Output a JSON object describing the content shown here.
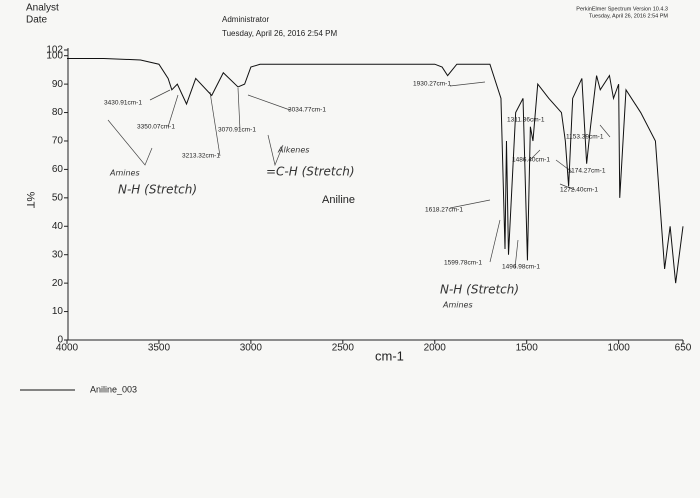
{
  "chart_data": {
    "type": "line",
    "header": {
      "left": [
        "Analyst",
        "Date"
      ],
      "center": [
        "Administrator",
        "Tuesday, April 26, 2016 2:54 PM"
      ],
      "right": [
        "PerkinElmer Spectrum Version 10.4.3",
        "Tuesday, April 26, 2016 2:54 PM"
      ]
    },
    "sample_label": "Aniline",
    "xlabel": "cm-1",
    "ylabel": "%T",
    "xlim": [
      4000,
      650
    ],
    "ylim": [
      0,
      102
    ],
    "xticks": [
      4000,
      3500,
      3000,
      2500,
      2000,
      1500,
      1000,
      650
    ],
    "yticks": [
      0,
      10,
      20,
      30,
      40,
      50,
      60,
      70,
      80,
      90,
      100,
      102
    ],
    "series": [
      {
        "name": "Aniline_003",
        "color": "#111111",
        "x": [
          4000,
          3800,
          3600,
          3500,
          3450,
          3430,
          3400,
          3350,
          3300,
          3213,
          3150,
          3070,
          3034,
          3000,
          2950,
          2500,
          2000,
          1960,
          1930,
          1880,
          1700,
          1640,
          1618,
          1610,
          1599,
          1560,
          1520,
          1496,
          1480,
          1466,
          1440,
          1380,
          1311,
          1290,
          1272,
          1250,
          1200,
          1174,
          1153,
          1120,
          1100,
          1050,
          1028,
          1000,
          994,
          960,
          880,
          800,
          750,
          720,
          690,
          670,
          650
        ],
        "values": [
          99,
          99,
          98.5,
          97,
          92,
          88,
          90,
          83,
          92,
          86,
          94,
          89,
          90,
          96,
          97,
          97,
          97,
          96,
          93,
          97,
          97,
          85,
          32,
          70,
          30,
          80,
          85,
          28,
          75,
          70,
          90,
          85,
          80,
          70,
          54,
          85,
          92,
          62,
          75,
          93,
          88,
          93,
          85,
          90,
          50,
          88,
          80,
          70,
          25,
          40,
          20,
          30,
          40
        ]
      }
    ],
    "annotations": [
      "3430.91cm-1",
      "3350.07cm-1",
      "3213.32cm-1",
      "3070.91cm-1",
      "3034.77cm-1",
      "1930.27cm-1",
      "1618.27cm-1",
      "1599.78cm-1",
      "1496.98cm-1",
      "1311.36cm-1",
      "1486.40cm-1",
      "1174.27cm-1",
      "1272.40cm-1",
      "1153.39cm-1"
    ],
    "handwritten": [
      "Amines",
      "N-H (Stretch)",
      "Alkenes",
      "=C-H (Stretch)",
      "N-H (Stretch)",
      "Amines"
    ]
  }
}
